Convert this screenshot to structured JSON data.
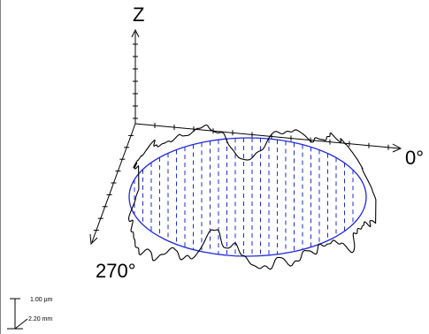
{
  "labels": {
    "z_axis": "Z",
    "angle_zero": "0°",
    "angle_270": "270°"
  },
  "scale_bar": {
    "vertical": "1.00 µm",
    "horizontal": "2.20 mm"
  },
  "colors": {
    "reference_circle": "#1f2ad8",
    "guide_lines": "#1f2ad8",
    "profile": "#000000",
    "axes": "#000000"
  }
}
